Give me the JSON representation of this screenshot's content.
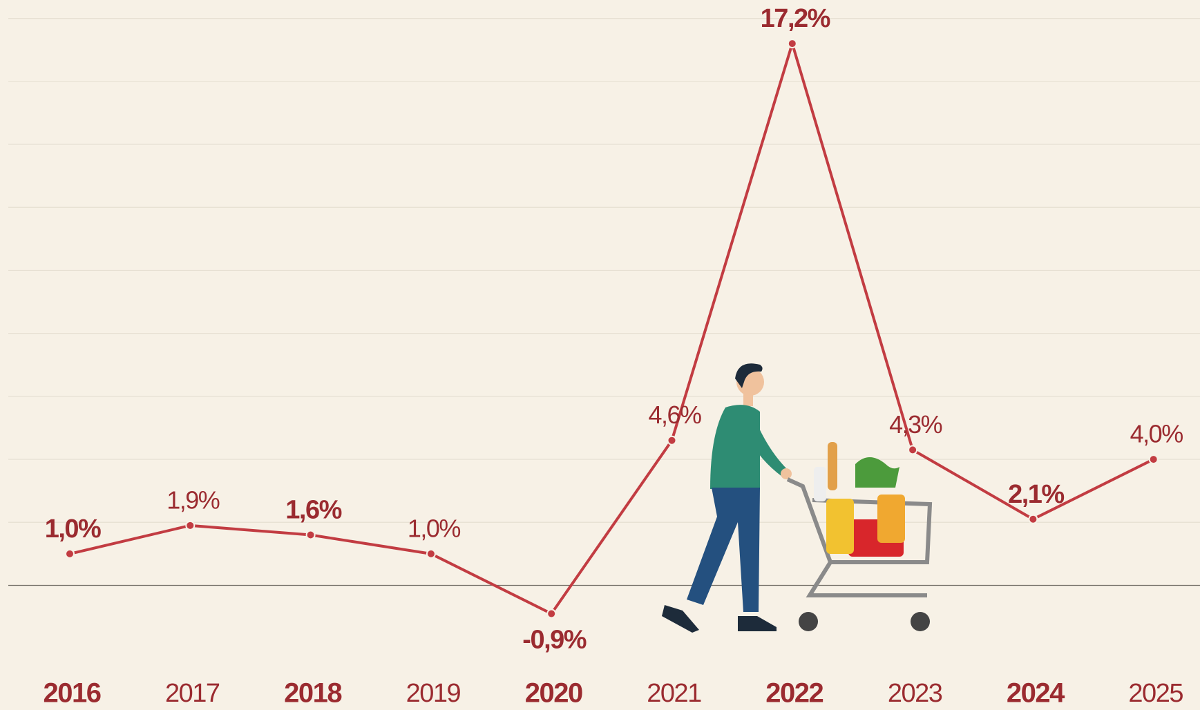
{
  "chart_data": {
    "type": "line",
    "categories": [
      "2016",
      "2017",
      "2018",
      "2019",
      "2020",
      "2021",
      "2022",
      "2023",
      "2024",
      "2025"
    ],
    "values": [
      1.0,
      1.9,
      1.6,
      1.0,
      -0.9,
      4.6,
      17.2,
      4.3,
      2.1,
      4.0
    ],
    "value_labels": [
      "1,0%",
      "1,9%",
      "1,6%",
      "1,0%",
      "-0,9%",
      "4,6%",
      "17,2%",
      "4,3%",
      "2,1%",
      "4,0%"
    ],
    "color": "#c23c42",
    "ylim": [
      -2,
      18
    ],
    "yticks": [
      0,
      2,
      4,
      6,
      8,
      10,
      12,
      14,
      16,
      18
    ],
    "grid": true
  }
}
